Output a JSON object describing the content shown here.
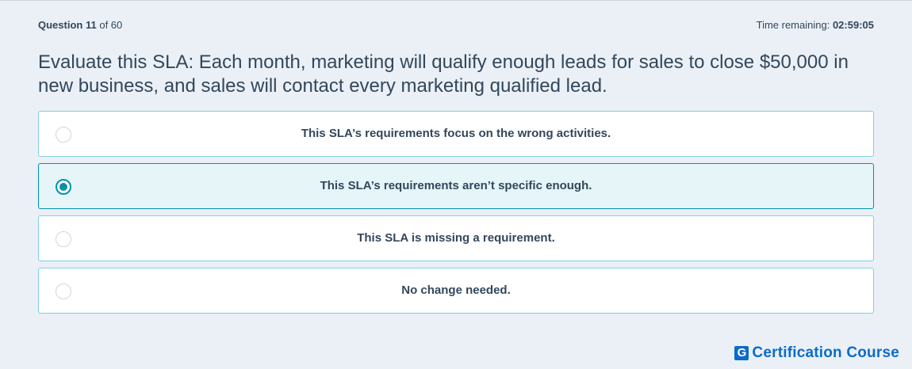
{
  "header": {
    "question_label": "Question",
    "question_number": "11",
    "question_of": "of 60",
    "time_label": "Time remaining:",
    "time_value": "02:59:05"
  },
  "question": {
    "text": "Evaluate this SLA: Each month, marketing will qualify enough leads for sales to close $50,000 in new business, and sales will contact every marketing qualified lead."
  },
  "options": [
    {
      "label": "This SLA’s requirements focus on the wrong activities.",
      "selected": false
    },
    {
      "label": "This SLA’s requirements aren’t specific enough.",
      "selected": true
    },
    {
      "label": "This SLA is missing a requirement.",
      "selected": false
    },
    {
      "label": "No change needed.",
      "selected": false
    }
  ],
  "brand": {
    "logo_letter": "G",
    "name": "Certification Course",
    "color": "#0b6bcb"
  },
  "colors": {
    "accent": "#0091ae",
    "background": "#eaf0f6",
    "text": "#33475b"
  }
}
